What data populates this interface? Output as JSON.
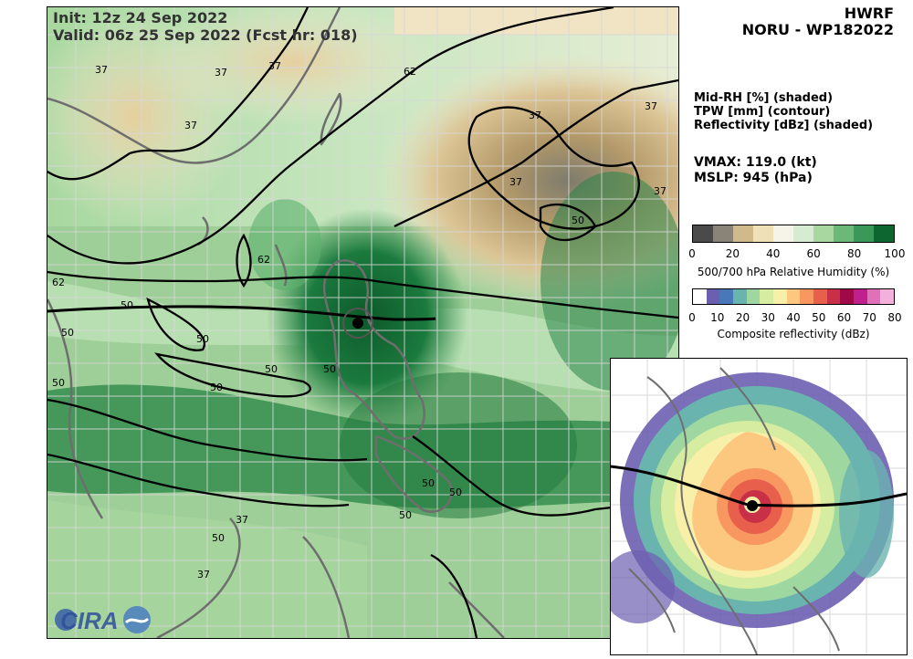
{
  "header": {
    "model": "HWRF",
    "storm": "NORU - WP182022",
    "init": "Init:   12z 24 Sep 2022",
    "valid": "Valid: 06z 25 Sep 2022 (Fcst hr: 018)"
  },
  "fields": [
    "Mid-RH [%] (shaded)",
    "TPW [mm] (contour)",
    "Reflectivity [dBz] (shaded)"
  ],
  "stats": {
    "vmax": "VMAX: 119.0 (kt)",
    "mslp": "MSLP:  945 (hPa)"
  },
  "rh_colorbar": {
    "label": "500/700 hPa Relative Humidity (%)",
    "ticks": [
      "0",
      "20",
      "40",
      "60",
      "80",
      "100"
    ],
    "colors": [
      "#4a4a4a",
      "#8a8478",
      "#d2b98a",
      "#f0e0b8",
      "#f6f4e8",
      "#d6ecd0",
      "#a8d8a0",
      "#6cb878",
      "#3a9858",
      "#0d6530"
    ]
  },
  "refl_colorbar": {
    "label": "Composite reflectivity (dBz)",
    "ticks": [
      "0",
      "10",
      "20",
      "30",
      "40",
      "50",
      "60",
      "70",
      "80"
    ],
    "colors": [
      "#ffffff",
      "#6c5fb0",
      "#4878b8",
      "#6ab4b0",
      "#9ed8a0",
      "#d6eca0",
      "#f8f0a8",
      "#fcc880",
      "#f89860",
      "#e8604c",
      "#c83048",
      "#a00848",
      "#c0208c",
      "#e070b8",
      "#f4b0dc"
    ]
  },
  "contour_labels": [
    "37",
    "37",
    "37",
    "37",
    "62",
    "62",
    "62",
    "37",
    "37",
    "37",
    "50",
    "37",
    "50",
    "50",
    "50",
    "50",
    "50",
    "50",
    "50",
    "50",
    "37",
    "50",
    "37",
    "50",
    "50"
  ],
  "logos": {
    "cira": "CIRA"
  },
  "colors": {
    "track": "#000000",
    "coast": "#6e6e6e",
    "grid": "#d8d8d8"
  }
}
